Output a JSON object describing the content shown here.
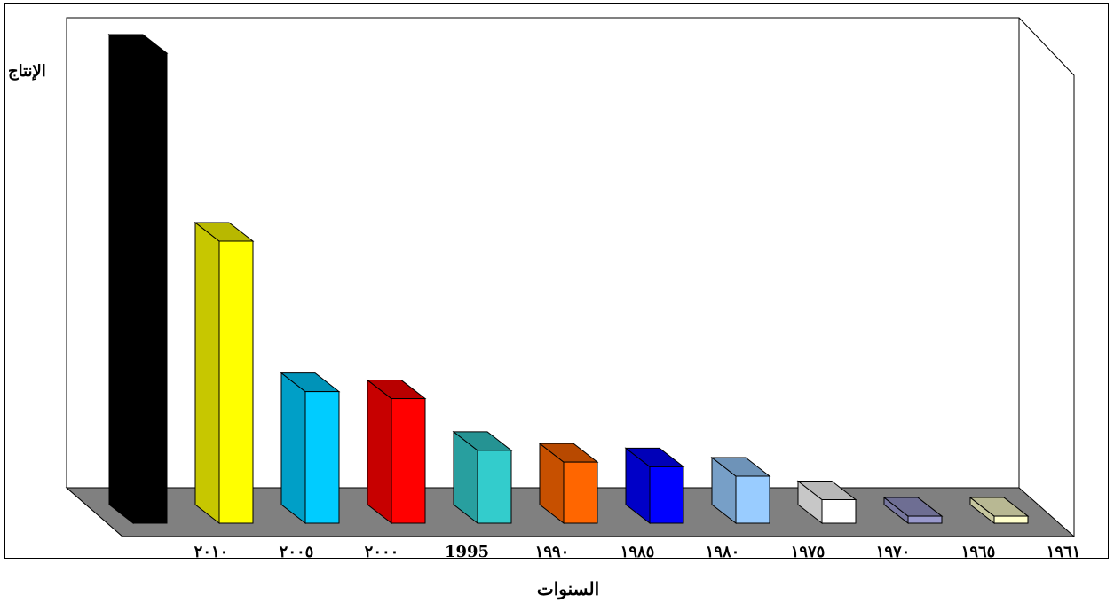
{
  "chart_data": {
    "type": "bar",
    "title": "",
    "ylabel": "الإنتاج",
    "xlabel": "السنوات",
    "categories": [
      "٢٠١٠",
      "٢٠٠٥",
      "٢٠٠٠",
      "1995",
      "١٩٩٠",
      "١٩٨٥",
      "١٩٨٠",
      "١٩٧٥",
      "١٩٧٠",
      "١٩٦٥",
      "١٩٦١"
    ],
    "values": [
      100,
      60,
      28,
      26.5,
      15.5,
      13,
      12,
      10,
      5,
      1.5,
      1.5
    ],
    "colors": [
      "#000000",
      "#ffff00",
      "#00ccff",
      "#ff0000",
      "#33cccc",
      "#ff6600",
      "#0000ff",
      "#99ccff",
      "#ffffff",
      "#9999cc",
      "#ffffcc"
    ],
    "grid": false,
    "legend": "none"
  }
}
